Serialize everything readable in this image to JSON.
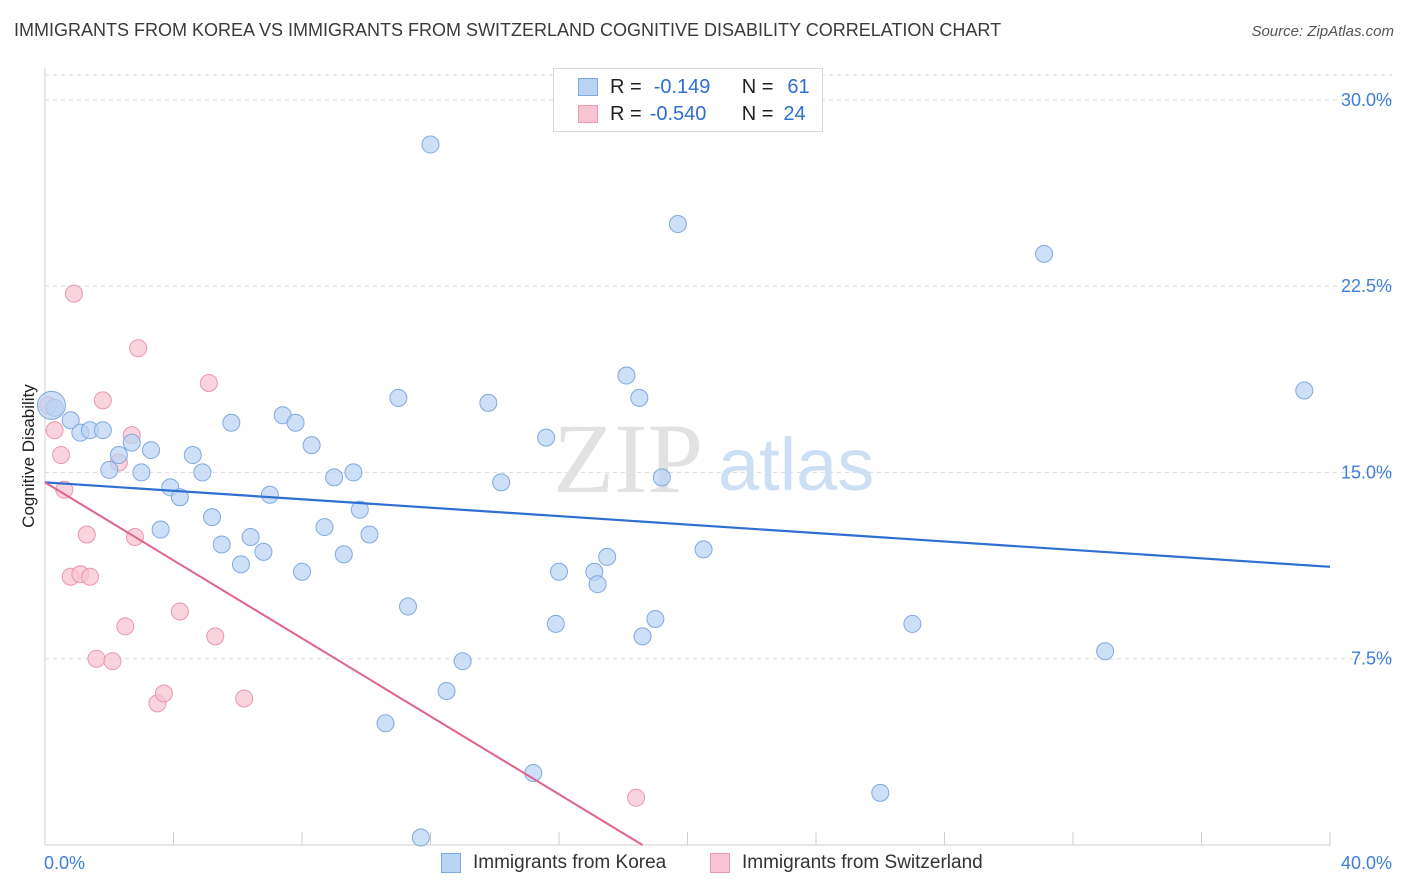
{
  "title": "IMMIGRANTS FROM KOREA VS IMMIGRANTS FROM SWITZERLAND COGNITIVE DISABILITY CORRELATION CHART",
  "source": "Source: ZipAtlas.com",
  "watermark": {
    "zip": "ZIP",
    "atlas": "atlas"
  },
  "legend": {
    "korea": {
      "r_label": "R =",
      "r_value": "-0.149",
      "n_label": "N =",
      "n_value": "61"
    },
    "switzerland": {
      "r_label": "R =",
      "r_value": "-0.540",
      "n_label": "N =",
      "n_value": "24"
    }
  },
  "colors": {
    "korea_fill": "#b9d3f3",
    "korea_stroke": "#7fa9de",
    "korea_line": "#2f6fd1",
    "swiss_fill": "#f7c4d3",
    "swiss_stroke": "#ea97b0",
    "swiss_line": "#e0628d",
    "tick_label": "#3f7ed8",
    "grid": "#d9d9d9"
  },
  "chart_data": {
    "type": "scatter",
    "title": "IMMIGRANTS FROM KOREA VS IMMIGRANTS FROM SWITZERLAND COGNITIVE DISABILITY CORRELATION CHART",
    "xlabel": "",
    "ylabel": "Cognitive Disability",
    "xlim": [
      0,
      40
    ],
    "ylim": [
      0,
      31
    ],
    "x_tick_labels": [
      "0.0%",
      "40.0%"
    ],
    "y_ticks": [
      7.5,
      15.0,
      22.5,
      30.0
    ],
    "y_tick_labels": [
      "7.5%",
      "15.0%",
      "22.5%",
      "30.0%"
    ],
    "grid": "horizontal dashed",
    "legend_position": "top-center and bottom",
    "series": [
      {
        "name": "Immigrants from Korea",
        "points": [
          [
            0.3,
            17.6
          ],
          [
            0.8,
            17.1
          ],
          [
            1.1,
            16.6
          ],
          [
            1.4,
            16.7
          ],
          [
            1.8,
            16.7
          ],
          [
            2.0,
            15.1
          ],
          [
            2.3,
            15.7
          ],
          [
            2.7,
            16.2
          ],
          [
            3.0,
            15.0
          ],
          [
            3.3,
            15.9
          ],
          [
            3.6,
            12.7
          ],
          [
            3.9,
            14.4
          ],
          [
            4.2,
            14.0
          ],
          [
            4.6,
            15.7
          ],
          [
            4.9,
            15.0
          ],
          [
            5.2,
            13.2
          ],
          [
            5.5,
            12.1
          ],
          [
            5.8,
            17.0
          ],
          [
            6.1,
            11.3
          ],
          [
            6.4,
            12.4
          ],
          [
            6.8,
            11.8
          ],
          [
            7.0,
            14.1
          ],
          [
            7.4,
            17.3
          ],
          [
            7.8,
            17.0
          ],
          [
            8.0,
            11.0
          ],
          [
            8.3,
            16.1
          ],
          [
            8.7,
            12.8
          ],
          [
            9.0,
            14.8
          ],
          [
            9.3,
            11.7
          ],
          [
            9.6,
            15.0
          ],
          [
            9.8,
            13.5
          ],
          [
            10.1,
            12.5
          ],
          [
            10.6,
            4.9
          ],
          [
            11.0,
            18.0
          ],
          [
            11.3,
            9.6
          ],
          [
            11.7,
            0.3
          ],
          [
            12.0,
            28.2
          ],
          [
            12.5,
            6.2
          ],
          [
            13.0,
            7.4
          ],
          [
            13.8,
            17.8
          ],
          [
            14.2,
            14.6
          ],
          [
            15.2,
            2.9
          ],
          [
            15.6,
            16.4
          ],
          [
            15.9,
            8.9
          ],
          [
            16.0,
            11.0
          ],
          [
            17.1,
            11.0
          ],
          [
            17.2,
            10.5
          ],
          [
            17.5,
            11.6
          ],
          [
            18.1,
            18.9
          ],
          [
            18.5,
            18.0
          ],
          [
            18.6,
            8.4
          ],
          [
            19.0,
            9.1
          ],
          [
            19.2,
            14.8
          ],
          [
            19.7,
            25.0
          ],
          [
            20.5,
            11.9
          ],
          [
            27.0,
            8.9
          ],
          [
            26.0,
            2.1
          ],
          [
            31.1,
            23.8
          ],
          [
            33.0,
            7.8
          ],
          [
            39.2,
            18.3
          ],
          [
            0.2,
            17.7
          ]
        ],
        "trend": {
          "x": [
            0,
            40
          ],
          "y": [
            14.6,
            11.2
          ]
        }
      },
      {
        "name": "Immigrants from Switzerland",
        "points": [
          [
            0.1,
            17.7
          ],
          [
            0.3,
            16.7
          ],
          [
            0.5,
            15.7
          ],
          [
            0.6,
            14.3
          ],
          [
            0.8,
            10.8
          ],
          [
            0.9,
            22.2
          ],
          [
            1.1,
            10.9
          ],
          [
            1.3,
            12.5
          ],
          [
            1.4,
            10.8
          ],
          [
            1.6,
            7.5
          ],
          [
            1.8,
            17.9
          ],
          [
            2.1,
            7.4
          ],
          [
            2.3,
            15.4
          ],
          [
            2.5,
            8.8
          ],
          [
            2.7,
            16.5
          ],
          [
            2.8,
            12.4
          ],
          [
            2.9,
            20.0
          ],
          [
            3.5,
            5.7
          ],
          [
            3.7,
            6.1
          ],
          [
            4.2,
            9.4
          ],
          [
            5.1,
            18.6
          ],
          [
            5.3,
            8.4
          ],
          [
            6.2,
            5.9
          ],
          [
            18.4,
            1.9
          ]
        ],
        "trend": {
          "x": [
            0,
            18.6
          ],
          "y": [
            14.6,
            0
          ]
        }
      }
    ]
  },
  "bottom_legend": {
    "korea_label": "Immigrants from Korea",
    "switzerland_label": "Immigrants from Switzerland"
  }
}
